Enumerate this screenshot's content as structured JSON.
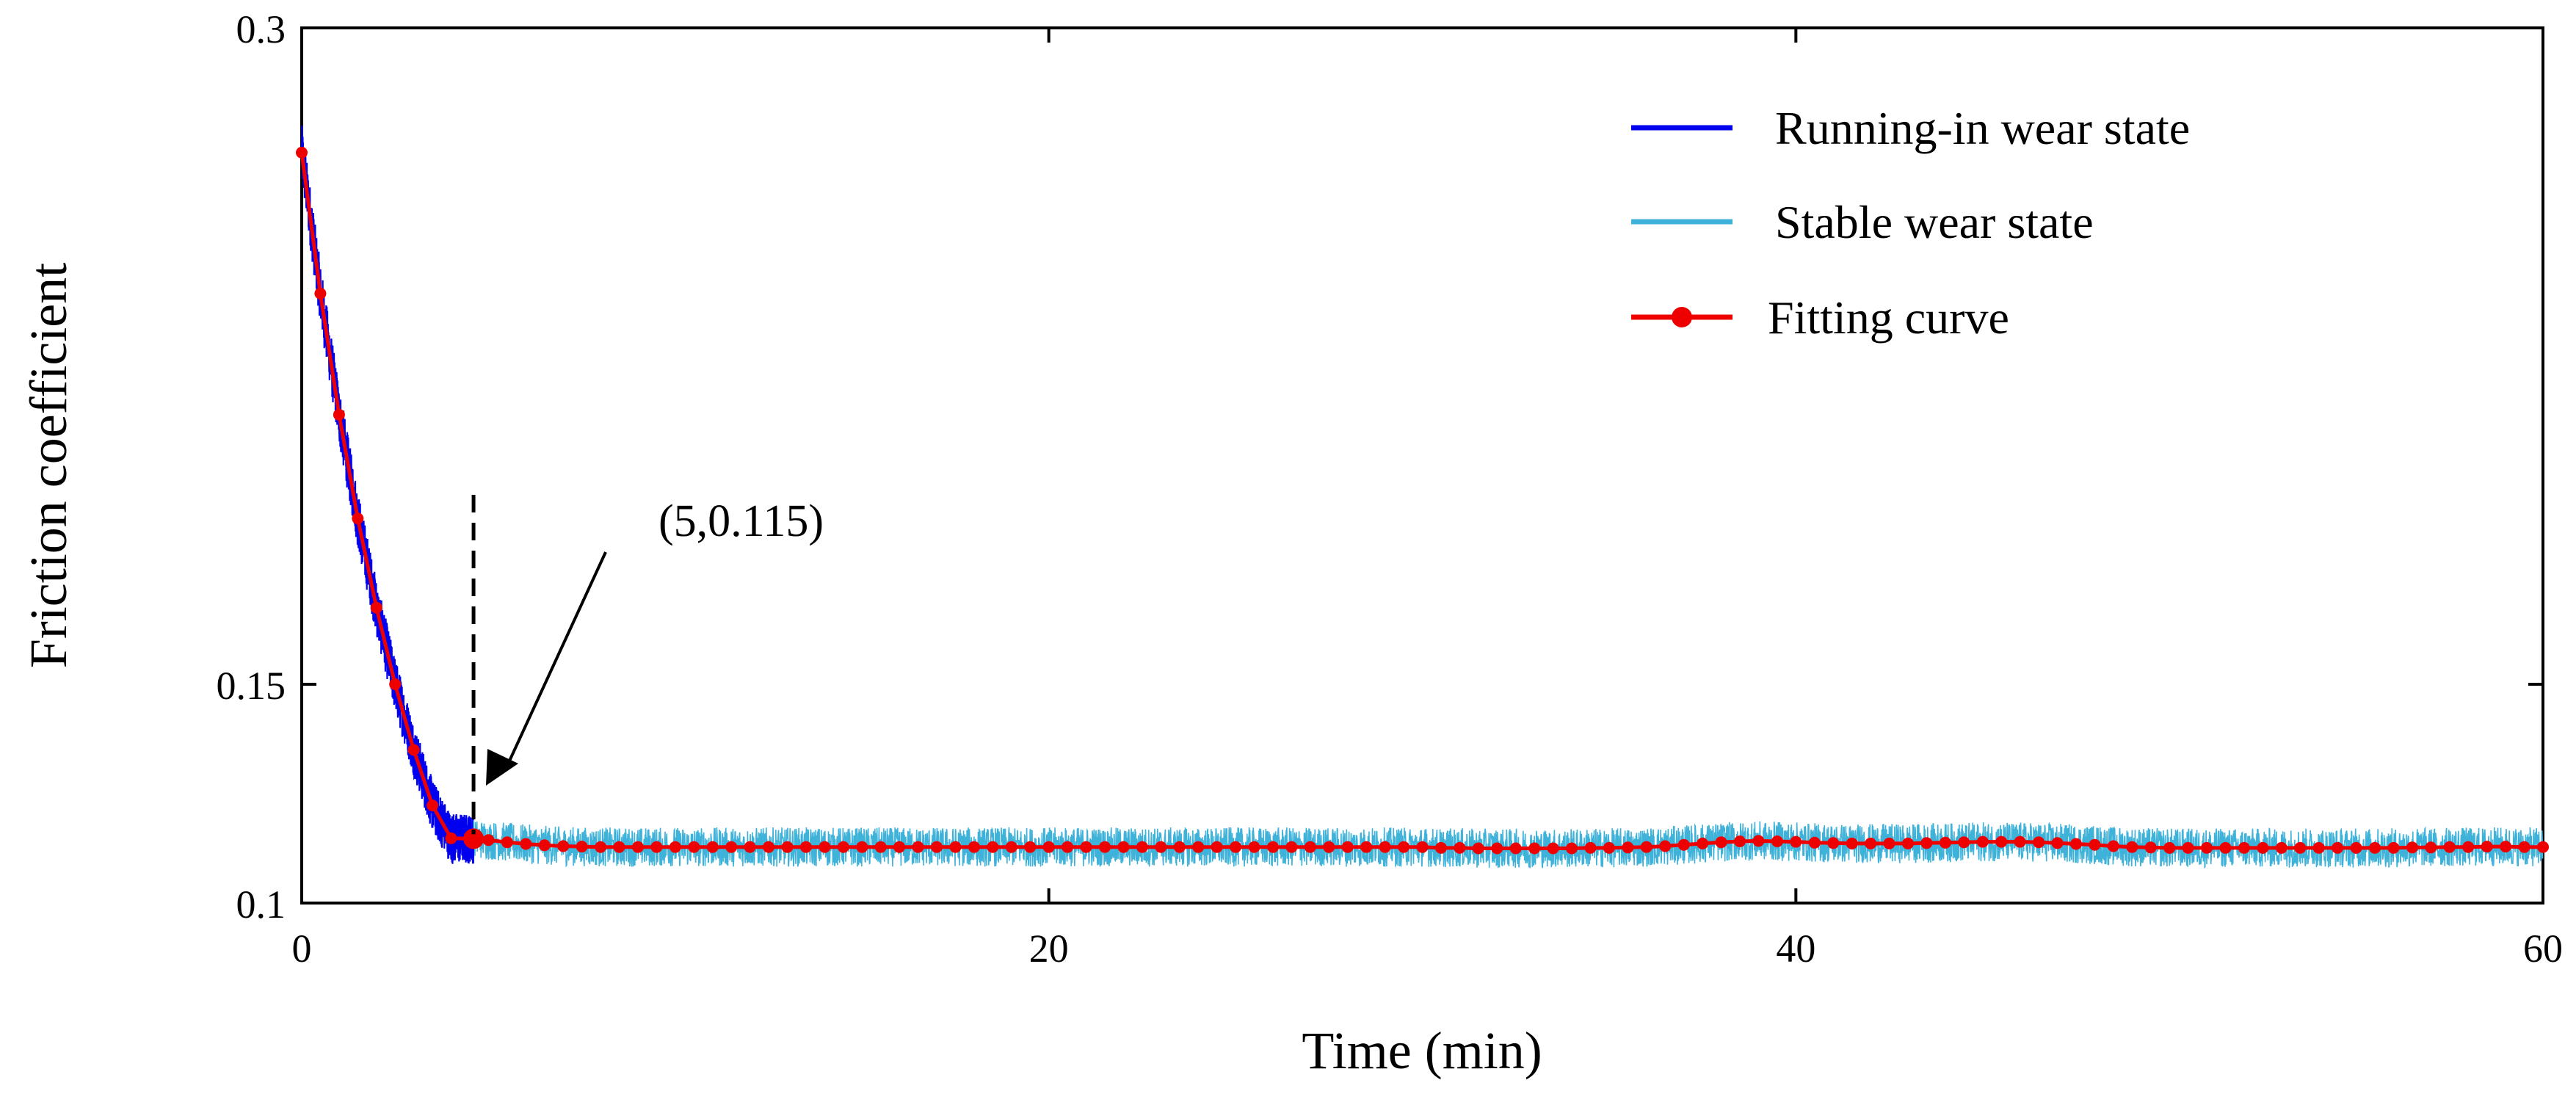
{
  "chart_data": {
    "type": "line",
    "title": "",
    "xlabel": "Time (min)",
    "ylabel": "Friction coefficient",
    "xlim": [
      0,
      60
    ],
    "ylim": [
      0.1,
      0.3
    ],
    "xticks": [
      0,
      20,
      40,
      60
    ],
    "xtick_labels": [
      "0",
      "20",
      "40",
      "60"
    ],
    "yticks": [
      0.1,
      0.15,
      0.3
    ],
    "ytick_labels": [
      "0.1",
      "0.15",
      "0.3"
    ],
    "grid": false,
    "legend_position": "top-right",
    "transition_time": 4.6,
    "annotation": {
      "text": "(5,0.115)",
      "point": [
        4.6,
        0.1147
      ]
    },
    "series": [
      {
        "name": "Running-in wear state",
        "color": "#0000ee",
        "kind": "noisy",
        "x_range": [
          0,
          4.6
        ],
        "noise": 0.005
      },
      {
        "name": "Stable wear state",
        "color": "#3fb2d9",
        "kind": "noisy",
        "x_range": [
          4.6,
          60
        ],
        "noise": 0.0045
      },
      {
        "name": "Fitting curve",
        "color": "#ee0000",
        "kind": "fit",
        "x": [
          0,
          0.5,
          1.0,
          1.5,
          2.0,
          2.5,
          3.0,
          3.5,
          4.0,
          4.6,
          5.0,
          5.5,
          6.0,
          6.5,
          7.0,
          7.5,
          8.0,
          8.5,
          9.0,
          9.5,
          10.0,
          10.5,
          11.0,
          11.5,
          12.0,
          12.5,
          13.0,
          13.5,
          14.0,
          14.5,
          15.0,
          15.5,
          16.0,
          16.5,
          17.0,
          17.5,
          18.0,
          18.5,
          19.0,
          19.5,
          20.0,
          20.5,
          21.0,
          21.5,
          22.0,
          22.5,
          23.0,
          23.5,
          24.0,
          24.5,
          25.0,
          25.5,
          26.0,
          26.5,
          27.0,
          27.5,
          28.0,
          28.5,
          29.0,
          29.5,
          30.0,
          30.5,
          31.0,
          31.5,
          32.0,
          32.5,
          33.0,
          33.5,
          34.0,
          34.5,
          35.0,
          35.5,
          36.0,
          36.5,
          37.0,
          37.5,
          38.0,
          38.5,
          39.0,
          39.5,
          40.0,
          40.5,
          41.0,
          41.5,
          42.0,
          42.5,
          43.0,
          43.5,
          44.0,
          44.5,
          45.0,
          45.5,
          46.0,
          46.5,
          47.0,
          47.5,
          48.0,
          48.5,
          49.0,
          49.5,
          50.0,
          50.5,
          51.0,
          51.5,
          52.0,
          52.5,
          53.0,
          53.5,
          54.0,
          54.5,
          55.0,
          55.5,
          56.0,
          56.5,
          57.0,
          57.5,
          58.0,
          58.5,
          59.0,
          59.5,
          60.0
        ],
        "values": [
          0.2715,
          0.2393,
          0.2116,
          0.1879,
          0.1675,
          0.15,
          0.135,
          0.1223,
          0.1148,
          0.1147,
          0.1144,
          0.1139,
          0.1135,
          0.1132,
          0.113,
          0.1129,
          0.1128,
          0.1128,
          0.1128,
          0.1128,
          0.1128,
          0.1128,
          0.1128,
          0.1128,
          0.1128,
          0.1128,
          0.1128,
          0.1128,
          0.1128,
          0.1128,
          0.1128,
          0.1128,
          0.1128,
          0.1128,
          0.1128,
          0.1128,
          0.1128,
          0.1128,
          0.1128,
          0.1128,
          0.1128,
          0.1128,
          0.1128,
          0.1128,
          0.1128,
          0.1128,
          0.1128,
          0.1128,
          0.1128,
          0.1128,
          0.1128,
          0.1128,
          0.1128,
          0.1128,
          0.1128,
          0.1128,
          0.1128,
          0.1128,
          0.1128,
          0.1128,
          0.1128,
          0.1126,
          0.1126,
          0.1125,
          0.1125,
          0.1125,
          0.1125,
          0.1125,
          0.1125,
          0.1126,
          0.1126,
          0.1127,
          0.1128,
          0.113,
          0.1133,
          0.1136,
          0.1139,
          0.1141,
          0.1142,
          0.1141,
          0.114,
          0.1138,
          0.1137,
          0.1136,
          0.1136,
          0.1136,
          0.1136,
          0.1137,
          0.1138,
          0.1139,
          0.114,
          0.114,
          0.114,
          0.1139,
          0.1137,
          0.1135,
          0.1133,
          0.113,
          0.1128,
          0.1127,
          0.1126,
          0.1126,
          0.1126,
          0.1126,
          0.1126,
          0.1126,
          0.1126,
          0.1126,
          0.1126,
          0.1126,
          0.1126,
          0.1126,
          0.1126,
          0.1127,
          0.1127,
          0.1128,
          0.1128,
          0.1129,
          0.1129,
          0.1128,
          0.1128
        ]
      }
    ]
  }
}
